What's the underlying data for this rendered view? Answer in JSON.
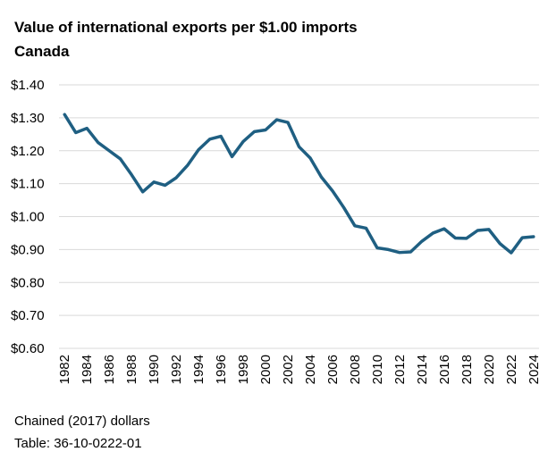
{
  "chart_data": {
    "type": "line",
    "title": "Value of international exports per $1.00 imports",
    "subtitle": "Canada",
    "xlabel": "",
    "ylabel": "",
    "ylim": [
      0.6,
      1.4
    ],
    "yticks": [
      0.6,
      0.7,
      0.8,
      0.9,
      1.0,
      1.1,
      1.2,
      1.3,
      1.4
    ],
    "ytick_labels": [
      "$0.60",
      "$0.70",
      "$0.80",
      "$0.90",
      "$1.00",
      "$1.10",
      "$1.20",
      "$1.30",
      "$1.40"
    ],
    "xtick_labels": [
      "1982",
      "1984",
      "1986",
      "1988",
      "1990",
      "1992",
      "1994",
      "1996",
      "1998",
      "2000",
      "2002",
      "2004",
      "2006",
      "2008",
      "2010",
      "2012",
      "2014",
      "2016",
      "2018",
      "2020",
      "2022",
      "2024"
    ],
    "grid": true,
    "legend": "none",
    "color": "#1f5f82",
    "series": [
      {
        "name": "Exports per $1.00 imports",
        "x": [
          1982,
          1983,
          1984,
          1985,
          1986,
          1987,
          1988,
          1989,
          1990,
          1991,
          1992,
          1993,
          1994,
          1995,
          1996,
          1997,
          1998,
          1999,
          2000,
          2001,
          2002,
          2003,
          2004,
          2005,
          2006,
          2007,
          2008,
          2009,
          2010,
          2011,
          2012,
          2013,
          2014,
          2015,
          2016,
          2017,
          2018,
          2019,
          2020,
          2021,
          2022,
          2023,
          2024
        ],
        "values": [
          1.31,
          1.255,
          1.268,
          1.225,
          1.2,
          1.175,
          1.127,
          1.075,
          1.105,
          1.095,
          1.118,
          1.155,
          1.203,
          1.235,
          1.244,
          1.182,
          1.228,
          1.258,
          1.263,
          1.294,
          1.286,
          1.212,
          1.178,
          1.12,
          1.078,
          1.028,
          0.972,
          0.965,
          0.905,
          0.9,
          0.891,
          0.893,
          0.925,
          0.95,
          0.963,
          0.935,
          0.934,
          0.958,
          0.961,
          0.918,
          0.89,
          0.936,
          0.939
        ]
      }
    ]
  },
  "footer": {
    "units": "Chained (2017) dollars",
    "source": "Table: 36-10-0222-01"
  }
}
